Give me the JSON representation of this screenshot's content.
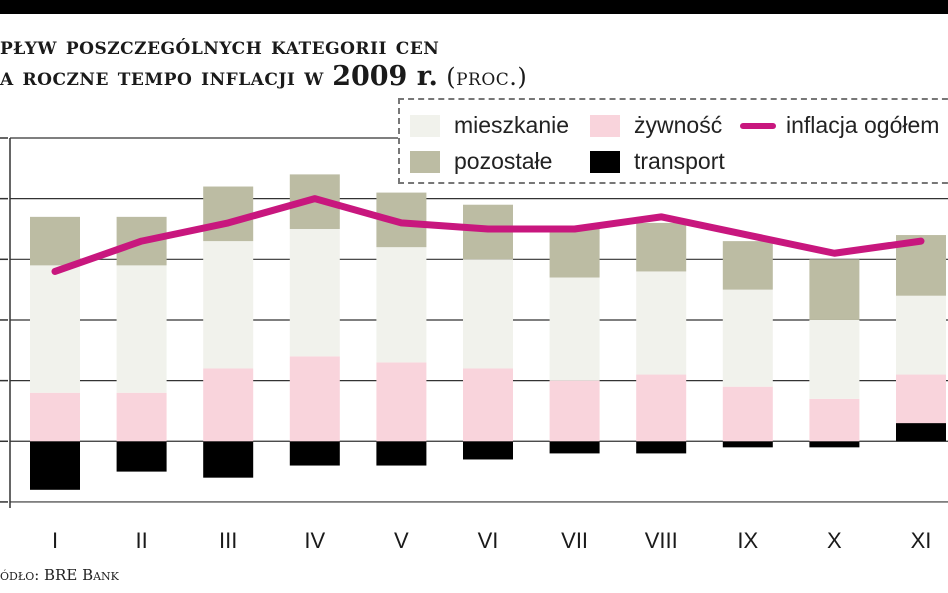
{
  "header": {
    "title_line1": "pływ poszczególnych kategorii cen",
    "title_line2": "a roczne tempo inflacji w",
    "title_year": "2009 r.",
    "title_unit": "(proc.)"
  },
  "source": "ódło: BRE Bank",
  "chart_data": {
    "type": "bar",
    "stacked": true,
    "categories": [
      "I",
      "II",
      "III",
      "IV",
      "V",
      "VI",
      "VII",
      "VIII",
      "IX",
      "X",
      "XI"
    ],
    "ylim": [
      -1.1,
      5.0
    ],
    "grid": true,
    "legend_position": "top-right",
    "series": [
      {
        "name": "transport",
        "color": "#000000",
        "values": [
          -0.8,
          -0.5,
          -0.6,
          -0.4,
          -0.4,
          -0.3,
          -0.2,
          -0.2,
          -0.1,
          -0.1,
          0.3
        ]
      },
      {
        "name": "żywność",
        "color": "#f9d4dc",
        "values": [
          0.8,
          0.8,
          1.2,
          1.4,
          1.3,
          1.2,
          1.0,
          1.1,
          0.9,
          0.7,
          0.8
        ]
      },
      {
        "name": "mieszkanie",
        "color": "#f1f2ec",
        "values": [
          2.1,
          2.1,
          2.1,
          2.1,
          1.9,
          1.8,
          1.7,
          1.7,
          1.6,
          1.3,
          1.3
        ]
      },
      {
        "name": "pozostałe",
        "color": "#bcbca3",
        "values": [
          0.8,
          0.8,
          0.9,
          0.9,
          0.9,
          0.9,
          0.8,
          0.8,
          0.8,
          1.0,
          1.0
        ]
      }
    ],
    "line": {
      "name": "inflacja ogółem",
      "color": "#c8177e",
      "values": [
        2.8,
        3.3,
        3.6,
        4.0,
        3.6,
        3.5,
        3.5,
        3.7,
        3.4,
        3.1,
        3.3
      ]
    }
  }
}
